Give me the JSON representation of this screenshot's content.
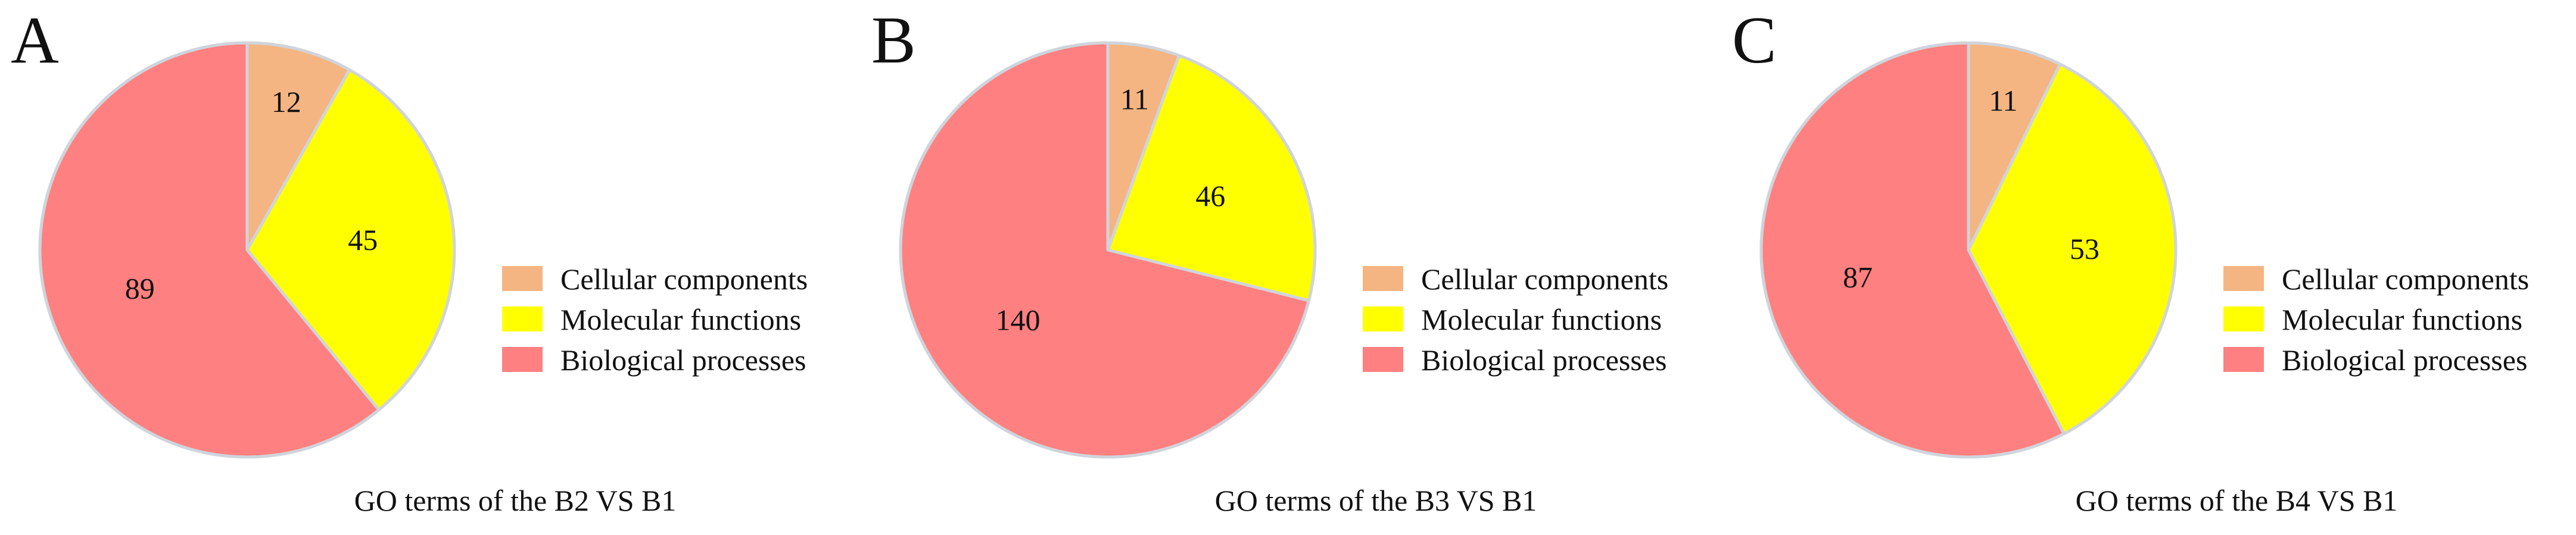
{
  "chart_data": [
    {
      "type": "pie",
      "panel_letter": "A",
      "title": "GO terms of the B2 VS B1",
      "legend_position": "right",
      "slices": [
        {
          "label": "Cellular components",
          "value": 12,
          "color": "#f4b582"
        },
        {
          "label": "Molecular functions",
          "value": 45,
          "color": "#ffff00"
        },
        {
          "label": "Biological processes",
          "value": 89,
          "color": "#ff8080"
        }
      ]
    },
    {
      "type": "pie",
      "panel_letter": "B",
      "title": "GO terms of the B3 VS B1",
      "legend_position": "right",
      "slices": [
        {
          "label": "Cellular components",
          "value": 11,
          "color": "#f4b582"
        },
        {
          "label": "Molecular functions",
          "value": 46,
          "color": "#ffff00"
        },
        {
          "label": "Biological processes",
          "value": 140,
          "color": "#ff8080"
        }
      ]
    },
    {
      "type": "pie",
      "panel_letter": "C",
      "title": "GO terms of the B4 VS B1",
      "legend_position": "right",
      "slices": [
        {
          "label": "Cellular components",
          "value": 11,
          "color": "#f4b582"
        },
        {
          "label": "Molecular functions",
          "value": 53,
          "color": "#ffff00"
        },
        {
          "label": "Biological processes",
          "value": 87,
          "color": "#ff8080"
        }
      ]
    }
  ]
}
